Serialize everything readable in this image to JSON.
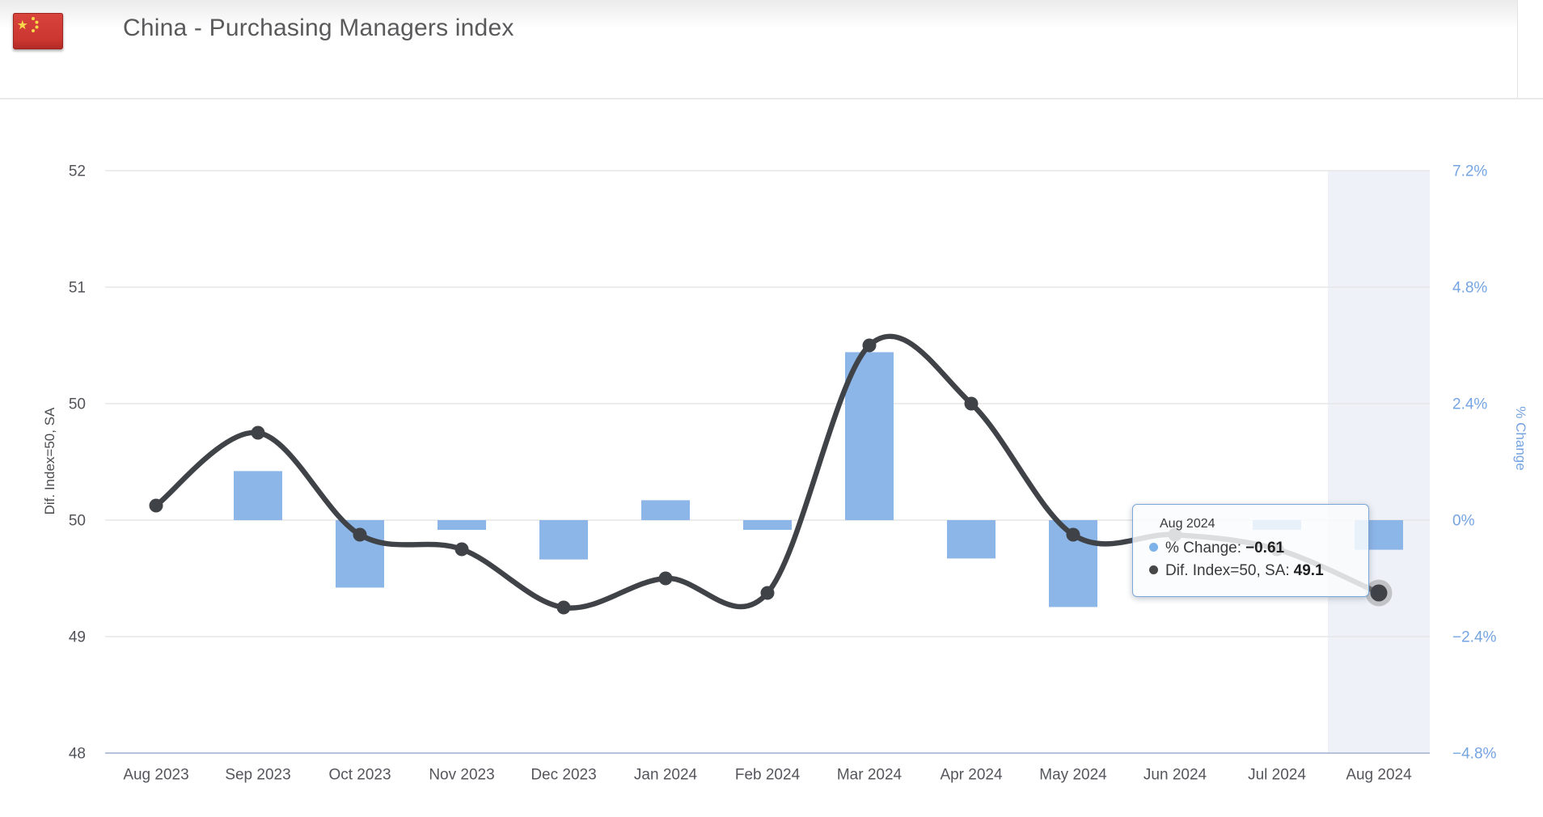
{
  "header": {
    "title": "China - Purchasing Managers index",
    "flag": "china-flag"
  },
  "chart_data": {
    "type": "mixed-bar-line",
    "categories": [
      "Aug 2023",
      "Sep 2023",
      "Oct 2023",
      "Nov 2023",
      "Dec 2023",
      "Jan 2024",
      "Feb 2024",
      "Mar 2024",
      "Apr 2024",
      "May 2024",
      "Jun 2024",
      "Jul 2024",
      "Aug 2024"
    ],
    "series": [
      {
        "name": "% Change",
        "type": "bar",
        "axis": "right",
        "color": "#8cb5e8",
        "values": [
          null,
          1.01,
          -1.39,
          -0.2,
          -0.81,
          0.41,
          -0.2,
          3.46,
          -0.79,
          -1.79,
          0,
          -0.2,
          -0.61
        ]
      },
      {
        "name": "Dif. Index=50, SA",
        "type": "line",
        "axis": "left",
        "color": "#3f4247",
        "values": [
          49.7,
          50.2,
          49.5,
          49.4,
          49.0,
          49.2,
          49.1,
          50.8,
          50.4,
          49.5,
          49.5,
          49.4,
          49.1
        ]
      }
    ],
    "left_axis": {
      "title": "Dif. Index=50, SA",
      "min": 48,
      "max": 52,
      "tick_labels_top_to_bottom": [
        "52",
        "51",
        "50",
        "50",
        "49",
        "48"
      ]
    },
    "right_axis": {
      "title": "% Change",
      "min": -4.8,
      "max": 7.2,
      "tick_labels_top_to_bottom": [
        "7.2%",
        "4.8%",
        "2.4%",
        "0%",
        "−2.4%",
        "−4.8%"
      ]
    },
    "grid": true,
    "legend": "none",
    "highlight_category": "Aug 2024"
  },
  "tooltip": {
    "title": "Aug 2024",
    "rows": [
      {
        "label": "% Change:",
        "value": "−0.61",
        "dot": "blue"
      },
      {
        "label": "Dif. Index=50, SA:",
        "value": "49.1",
        "dot": "dark"
      }
    ]
  },
  "colors": {
    "bar": "#8cb5e8",
    "line": "#3f4247",
    "gridline": "#e6e6e6",
    "x_axis_line": "#b5c2da",
    "left_label": "#53545a",
    "right_label": "#75a4e2",
    "x_label": "#55565c",
    "highlight_band": "#eef1f7",
    "tooltip_border": "#7aa6d8"
  }
}
